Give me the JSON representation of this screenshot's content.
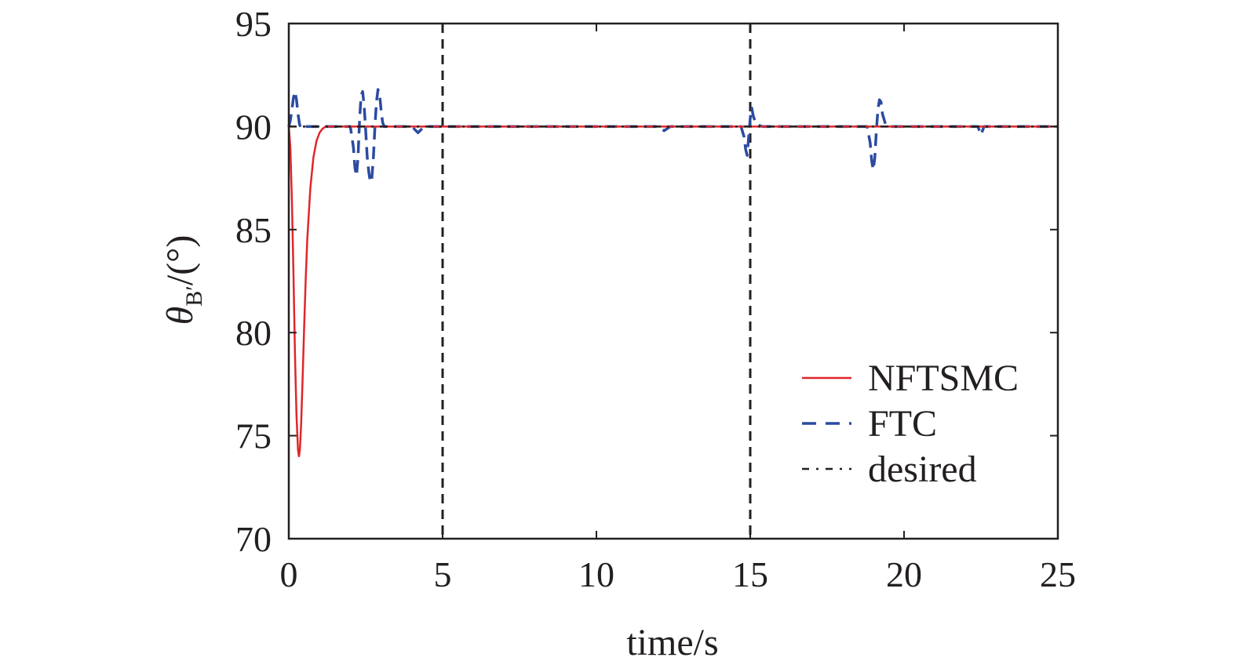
{
  "chart_data": {
    "type": "line",
    "title": "",
    "xlabel": "time/s",
    "ylabel_main": "θ",
    "ylabel_sub": "B′",
    "ylabel_tail": "/(°)",
    "xlim": [
      0,
      25
    ],
    "ylim": [
      70,
      95
    ],
    "xticks": [
      "0",
      "5",
      "10",
      "15",
      "20",
      "25"
    ],
    "yticks": [
      "70",
      "75",
      "80",
      "85",
      "90",
      "95"
    ],
    "grid": false,
    "legend_position": "bottom-right",
    "vertical_markers": [
      5,
      15
    ],
    "series": [
      {
        "name": "NFTSMC",
        "color": "#e0262b",
        "style": "solid",
        "x": [
          0,
          0.05,
          0.1,
          0.15,
          0.2,
          0.25,
          0.3,
          0.33,
          0.36,
          0.4,
          0.45,
          0.5,
          0.55,
          0.6,
          0.7,
          0.8,
          0.9,
          1.0,
          1.1,
          1.2,
          1.4,
          1.6,
          2,
          5,
          10,
          15,
          20,
          25
        ],
        "y": [
          90,
          89.0,
          86.5,
          83.0,
          79.0,
          76.0,
          74.3,
          74.0,
          74.3,
          75.5,
          77.8,
          80.3,
          82.6,
          84.5,
          87.0,
          88.5,
          89.3,
          89.7,
          89.9,
          90.0,
          90.0,
          90.0,
          90.0,
          90.0,
          90.0,
          90.0,
          90.0,
          90.0
        ]
      },
      {
        "name": "FTC",
        "color": "#2b4ba0",
        "style": "dashed",
        "x": [
          0,
          0.05,
          0.1,
          0.15,
          0.2,
          0.25,
          0.3,
          0.35,
          0.4,
          0.5,
          0.6,
          1.0,
          1.5,
          2.0,
          2.1,
          2.15,
          2.2,
          2.25,
          2.3,
          2.35,
          2.4,
          2.45,
          2.5,
          2.55,
          2.6,
          2.65,
          2.7,
          2.75,
          2.8,
          2.85,
          2.9,
          2.95,
          3.0,
          3.05,
          3.1,
          3.2,
          3.3,
          3.5,
          4.0,
          4.2,
          4.4,
          4.6,
          5.0,
          8.0,
          12.0,
          12.2,
          12.4,
          14.7,
          14.8,
          14.85,
          14.9,
          14.95,
          15.0,
          15.05,
          15.1,
          15.2,
          15.4,
          17.0,
          18.8,
          18.9,
          18.95,
          19.0,
          19.05,
          19.1,
          19.15,
          19.2,
          19.25,
          19.3,
          19.4,
          19.5,
          20.0,
          22.4,
          22.5,
          22.6,
          22.8,
          25.0
        ],
        "y": [
          90,
          90.3,
          90.8,
          91.4,
          91.7,
          91.3,
          90.6,
          90.1,
          89.9,
          90.0,
          90.0,
          90.0,
          90.0,
          90.0,
          89.0,
          88.0,
          87.6,
          88.5,
          90.3,
          91.5,
          91.7,
          91.0,
          89.8,
          88.5,
          87.8,
          87.3,
          87.5,
          88.5,
          90.0,
          91.2,
          91.8,
          91.6,
          90.8,
          90.2,
          90.0,
          90.0,
          90.0,
          90.0,
          90.0,
          89.7,
          90.0,
          90.0,
          90.0,
          90.0,
          90.0,
          89.8,
          90.0,
          90.0,
          89.5,
          88.9,
          88.6,
          89.5,
          90.4,
          90.9,
          90.5,
          90.1,
          90.0,
          90.0,
          90.0,
          89.2,
          88.3,
          87.9,
          88.5,
          89.8,
          90.8,
          91.3,
          91.2,
          90.6,
          90.1,
          90.0,
          90.0,
          90.0,
          89.6,
          90.0,
          90.0,
          90.0
        ]
      },
      {
        "name": "desired",
        "color": "#231f20",
        "style": "dashdot",
        "x": [
          0,
          25
        ],
        "y": [
          90,
          90
        ]
      }
    ]
  }
}
